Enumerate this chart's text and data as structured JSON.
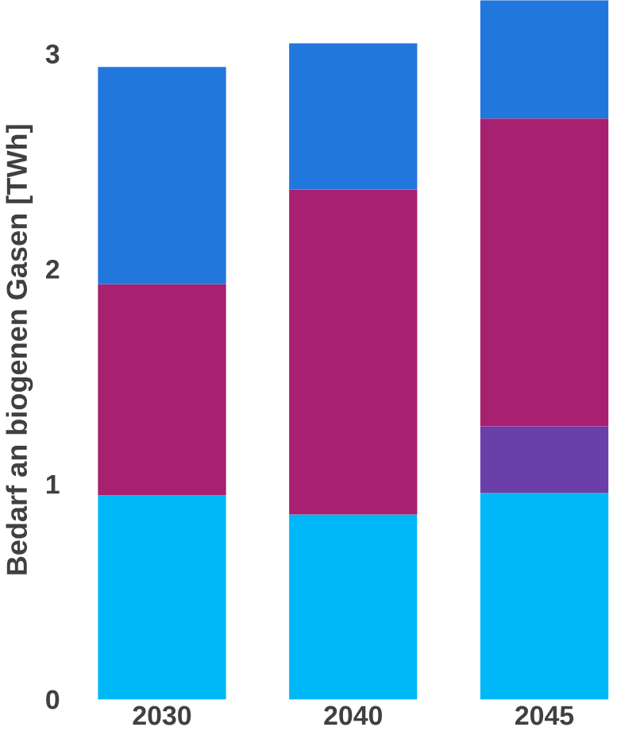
{
  "chart_data": {
    "type": "bar",
    "stacked": true,
    "ylabel": "Bedarf an biogenen Gasen  [TWh]",
    "categories": [
      "2030",
      "2040",
      "2045"
    ],
    "series": [
      {
        "color": "#00b8f8",
        "values": [
          0.95,
          0.86,
          0.96
        ]
      },
      {
        "color": "#6a3fa8",
        "values": [
          null,
          null,
          0.31
        ]
      },
      {
        "color": "#a82070",
        "values": [
          0.98,
          1.51,
          1.43
        ]
      },
      {
        "color": "#2277dd",
        "values": [
          1.01,
          0.68,
          0.55
        ]
      }
    ],
    "ylim": [
      0,
      3.25
    ],
    "yticks": [
      0,
      1,
      2,
      3
    ],
    "grid": false
  }
}
